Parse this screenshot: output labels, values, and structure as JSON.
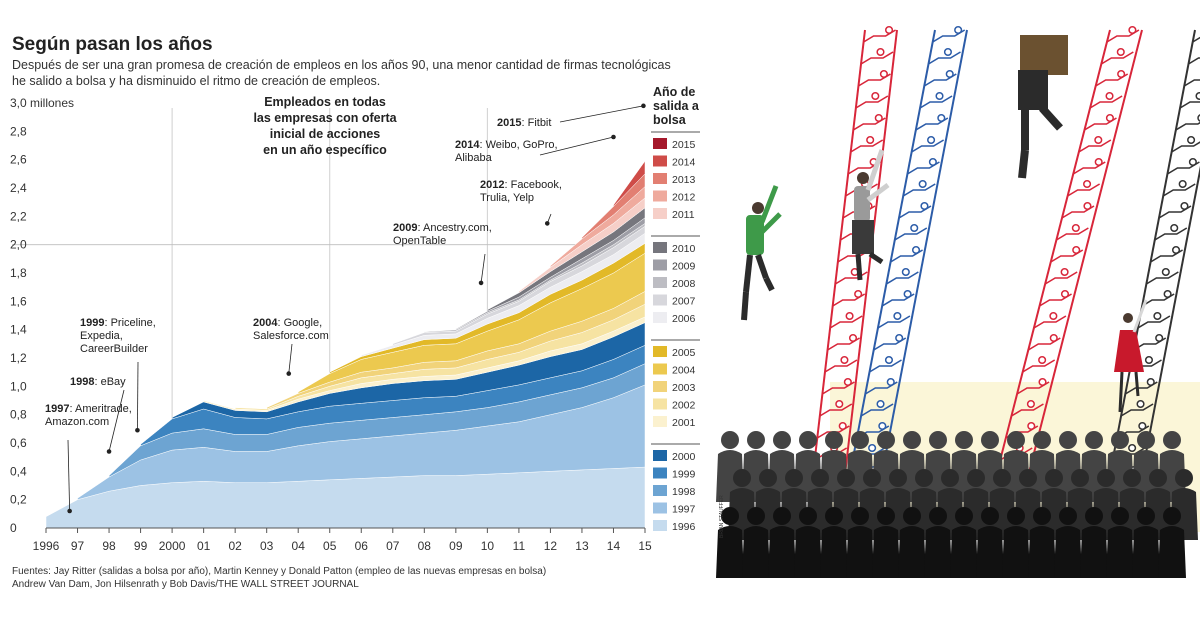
{
  "title": "Según pasan los años",
  "subtitle": [
    "Después de ser una gran promesa de creación de empleos en los años 90, una menor cantidad de firmas tecnológicas",
    "he salido a bolsa y ha disminuido el ritmo de creación de empleos."
  ],
  "unit_label": "3,0 millones",
  "center_note": [
    "Empleados en todas",
    "las empresas con oferta",
    "inicial de acciones",
    "en un año específico"
  ],
  "legend_title": [
    "Año de",
    "salida a",
    "bolsa"
  ],
  "footer": [
    "Fuentes: Jay Ritter (salidas a bolsa por año), Martin Kenney y Donald Patton (empleo de las nuevas empresas en bolsa)",
    "Andrew Van Dam, Jon Hilsenrath y Bob Davis/THE WALL STREET JOURNAL"
  ],
  "illustration_credit": "BRIAN STAUFFER",
  "annotations": [
    {
      "year": "1997",
      "text": [
        "Ameritrade,",
        "Amazon.com"
      ]
    },
    {
      "year": "1998",
      "text": [
        "eBay"
      ]
    },
    {
      "year": "1999",
      "text": [
        "Priceline,",
        "Expedia,",
        "CareerBuilder"
      ]
    },
    {
      "year": "2004",
      "text": [
        "Google,",
        "Salesforce.com"
      ]
    },
    {
      "year": "2009",
      "text": [
        "Ancestry.com,",
        "OpenTable"
      ]
    },
    {
      "year": "2012",
      "text": [
        "Facebook,",
        "Trulia, Yelp"
      ]
    },
    {
      "year": "2014",
      "text": [
        "Weibo, GoPro,",
        "Alibaba"
      ]
    },
    {
      "year": "2015",
      "text": [
        "Fitbit"
      ]
    }
  ],
  "chart_data": {
    "type": "area",
    "stacked": true,
    "x": [
      1996,
      1997,
      1998,
      1999,
      2000,
      2001,
      2002,
      2003,
      2004,
      2005,
      2006,
      2007,
      2008,
      2009,
      2010,
      2011,
      2012,
      2013,
      2014,
      2015
    ],
    "x_tick_labels": [
      "1996",
      "97",
      "98",
      "99",
      "2000",
      "01",
      "02",
      "03",
      "04",
      "05",
      "06",
      "07",
      "08",
      "09",
      "10",
      "11",
      "12",
      "13",
      "14",
      "15"
    ],
    "y_ticks": [
      "0",
      "0,2",
      "0,4",
      "0,6",
      "0,8",
      "1,0",
      "1,2",
      "1,4",
      "1,6",
      "1,8",
      "2,0",
      "2,2",
      "2,4",
      "2,6",
      "2,8",
      "3,0"
    ],
    "ylim": [
      0,
      3.0
    ],
    "ylabel": "3,0 millones",
    "grid": "vertical",
    "legend_position": "right",
    "series": [
      {
        "name": "1996",
        "color": "#c5dbee",
        "start": 1996,
        "values": [
          0.08,
          0.2,
          0.26,
          0.3,
          0.32,
          0.33,
          0.32,
          0.32,
          0.33,
          0.34,
          0.35,
          0.36,
          0.37,
          0.37,
          0.38,
          0.39,
          0.4,
          0.41,
          0.42,
          0.43
        ]
      },
      {
        "name": "1997",
        "color": "#9cc2e4",
        "start": 1997,
        "values": [
          0,
          0.01,
          0.1,
          0.18,
          0.23,
          0.24,
          0.22,
          0.22,
          0.25,
          0.27,
          0.28,
          0.29,
          0.3,
          0.32,
          0.34,
          0.36,
          0.4,
          0.44,
          0.5,
          0.58
        ]
      },
      {
        "name": "1998",
        "color": "#6da4d2",
        "start": 1998,
        "values": [
          0,
          0,
          0.01,
          0.1,
          0.12,
          0.13,
          0.12,
          0.12,
          0.13,
          0.13,
          0.13,
          0.13,
          0.13,
          0.13,
          0.13,
          0.14,
          0.14,
          0.14,
          0.14,
          0.15
        ]
      },
      {
        "name": "1999",
        "color": "#3c84c0",
        "start": 1999,
        "values": [
          0,
          0,
          0,
          0.01,
          0.1,
          0.14,
          0.12,
          0.11,
          0.11,
          0.12,
          0.12,
          0.12,
          0.12,
          0.11,
          0.12,
          0.12,
          0.12,
          0.12,
          0.13,
          0.13
        ]
      },
      {
        "name": "2000",
        "color": "#1c66a6",
        "start": 2000,
        "values": [
          0,
          0,
          0,
          0,
          0.01,
          0.05,
          0.05,
          0.05,
          0.07,
          0.09,
          0.11,
          0.12,
          0.12,
          0.12,
          0.13,
          0.14,
          0.15,
          0.15,
          0.16,
          0.16
        ]
      },
      {
        "name": "2001",
        "color": "#fbf1cf",
        "start": 2001,
        "values": [
          0,
          0,
          0,
          0,
          0,
          0.01,
          0.01,
          0.01,
          0.02,
          0.02,
          0.03,
          0.03,
          0.03,
          0.03,
          0.03,
          0.03,
          0.04,
          0.04,
          0.04,
          0.04
        ]
      },
      {
        "name": "2002",
        "color": "#f6e3a2",
        "start": 2002,
        "values": [
          0,
          0,
          0,
          0,
          0,
          0,
          0.01,
          0.01,
          0.02,
          0.03,
          0.04,
          0.04,
          0.05,
          0.05,
          0.06,
          0.06,
          0.07,
          0.08,
          0.08,
          0.09
        ]
      },
      {
        "name": "2003",
        "color": "#f1d37a",
        "start": 2003,
        "values": [
          0,
          0,
          0,
          0,
          0,
          0,
          0,
          0.01,
          0.02,
          0.03,
          0.04,
          0.04,
          0.05,
          0.05,
          0.06,
          0.06,
          0.07,
          0.08,
          0.08,
          0.09
        ]
      },
      {
        "name": "2004",
        "color": "#ecc94f",
        "start": 2004,
        "values": [
          0,
          0,
          0,
          0,
          0,
          0,
          0,
          0,
          0.01,
          0.06,
          0.09,
          0.11,
          0.12,
          0.12,
          0.14,
          0.17,
          0.2,
          0.23,
          0.25,
          0.27
        ]
      },
      {
        "name": "2005",
        "color": "#e2b928",
        "start": 2005,
        "values": [
          0,
          0,
          0,
          0,
          0,
          0,
          0,
          0,
          0,
          0.01,
          0.02,
          0.03,
          0.04,
          0.04,
          0.05,
          0.05,
          0.06,
          0.06,
          0.07,
          0.07
        ]
      },
      {
        "name": "2006",
        "color": "#ededf1",
        "start": 2006,
        "values": [
          0,
          0,
          0,
          0,
          0,
          0,
          0,
          0,
          0,
          0,
          0.01,
          0.02,
          0.03,
          0.03,
          0.04,
          0.05,
          0.05,
          0.06,
          0.06,
          0.07
        ]
      },
      {
        "name": "2007",
        "color": "#d7d7dc",
        "start": 2007,
        "values": [
          0,
          0,
          0,
          0,
          0,
          0,
          0,
          0,
          0,
          0,
          0,
          0.01,
          0.02,
          0.02,
          0.03,
          0.03,
          0.04,
          0.04,
          0.05,
          0.05
        ]
      },
      {
        "name": "2008",
        "color": "#bdbdc3",
        "start": 2008,
        "values": [
          0,
          0,
          0,
          0,
          0,
          0,
          0,
          0,
          0,
          0,
          0,
          0,
          0.005,
          0.01,
          0.01,
          0.01,
          0.01,
          0.02,
          0.02,
          0.02
        ]
      },
      {
        "name": "2009",
        "color": "#9e9ea6",
        "start": 2009,
        "values": [
          0,
          0,
          0,
          0,
          0,
          0,
          0,
          0,
          0,
          0,
          0,
          0,
          0,
          0.005,
          0.01,
          0.02,
          0.02,
          0.03,
          0.03,
          0.04
        ]
      },
      {
        "name": "2010",
        "color": "#76767d",
        "start": 2010,
        "values": [
          0,
          0,
          0,
          0,
          0,
          0,
          0,
          0,
          0,
          0,
          0,
          0,
          0,
          0,
          0.01,
          0.03,
          0.04,
          0.05,
          0.06,
          0.07
        ]
      },
      {
        "name": "2011",
        "color": "#f6cfc8",
        "start": 2011,
        "values": [
          0,
          0,
          0,
          0,
          0,
          0,
          0,
          0,
          0,
          0,
          0,
          0,
          0,
          0,
          0,
          0.01,
          0.03,
          0.05,
          0.06,
          0.07
        ]
      },
      {
        "name": "2012",
        "color": "#efaa9d",
        "start": 2012,
        "values": [
          0,
          0,
          0,
          0,
          0,
          0,
          0,
          0,
          0,
          0,
          0,
          0,
          0,
          0,
          0,
          0,
          0.01,
          0.04,
          0.06,
          0.08
        ]
      },
      {
        "name": "2013",
        "color": "#e27f72",
        "start": 2013,
        "values": [
          0,
          0,
          0,
          0,
          0,
          0,
          0,
          0,
          0,
          0,
          0,
          0,
          0,
          0,
          0,
          0,
          0,
          0.01,
          0.06,
          0.09
        ]
      },
      {
        "name": "2014",
        "color": "#cf4c48",
        "start": 2014,
        "values": [
          0,
          0,
          0,
          0,
          0,
          0,
          0,
          0,
          0,
          0,
          0,
          0,
          0,
          0,
          0,
          0,
          0,
          0,
          0.01,
          0.09
        ]
      },
      {
        "name": "2015",
        "color": "#a5182b",
        "start": 2015,
        "values": [
          0,
          0,
          0,
          0,
          0,
          0,
          0,
          0,
          0,
          0,
          0,
          0,
          0,
          0,
          0,
          0,
          0,
          0,
          0,
          0.02
        ]
      }
    ],
    "legend_groups": [
      [
        "2015",
        "2014",
        "2013",
        "2012",
        "2011"
      ],
      [
        "2010",
        "2009",
        "2008",
        "2007",
        "2006"
      ],
      [
        "2005",
        "2004",
        "2003",
        "2002",
        "2001"
      ],
      [
        "2000",
        "1999",
        "1998",
        "1997",
        "1996"
      ]
    ]
  }
}
